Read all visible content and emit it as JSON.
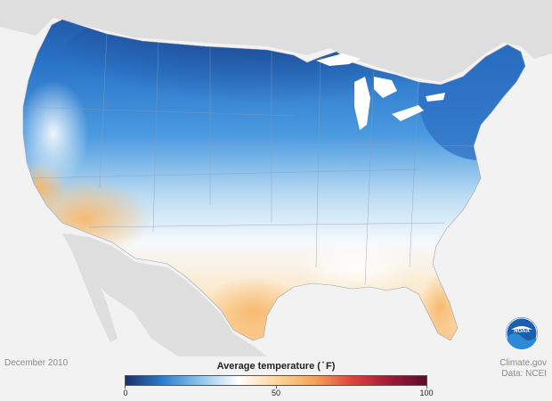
{
  "date": "December 2010",
  "legend": {
    "title": "Average temperature ( ̊ F)",
    "min_label": "0",
    "mid_label": "50",
    "max_label": "100",
    "stops": [
      "#1a2f6b",
      "#2a7fd0",
      "#8fc6ec",
      "#ffffff",
      "#fbd79b",
      "#f5a55a",
      "#e0453d",
      "#a01a3a",
      "#5a0d2a"
    ]
  },
  "credit": {
    "line1": "Climate.gov",
    "line2": "Data: NCEI"
  },
  "logo": {
    "text": "NOAA"
  },
  "map_colors": {
    "background": "#f2f2f2",
    "land_outside": "#dedede",
    "water": "#ffffff",
    "cold_dark": "#1f4e9a",
    "cold": "#2a80d2",
    "cool": "#7ab8e8",
    "mild": "#f4f8fc",
    "warm": "#fbcf8e"
  }
}
